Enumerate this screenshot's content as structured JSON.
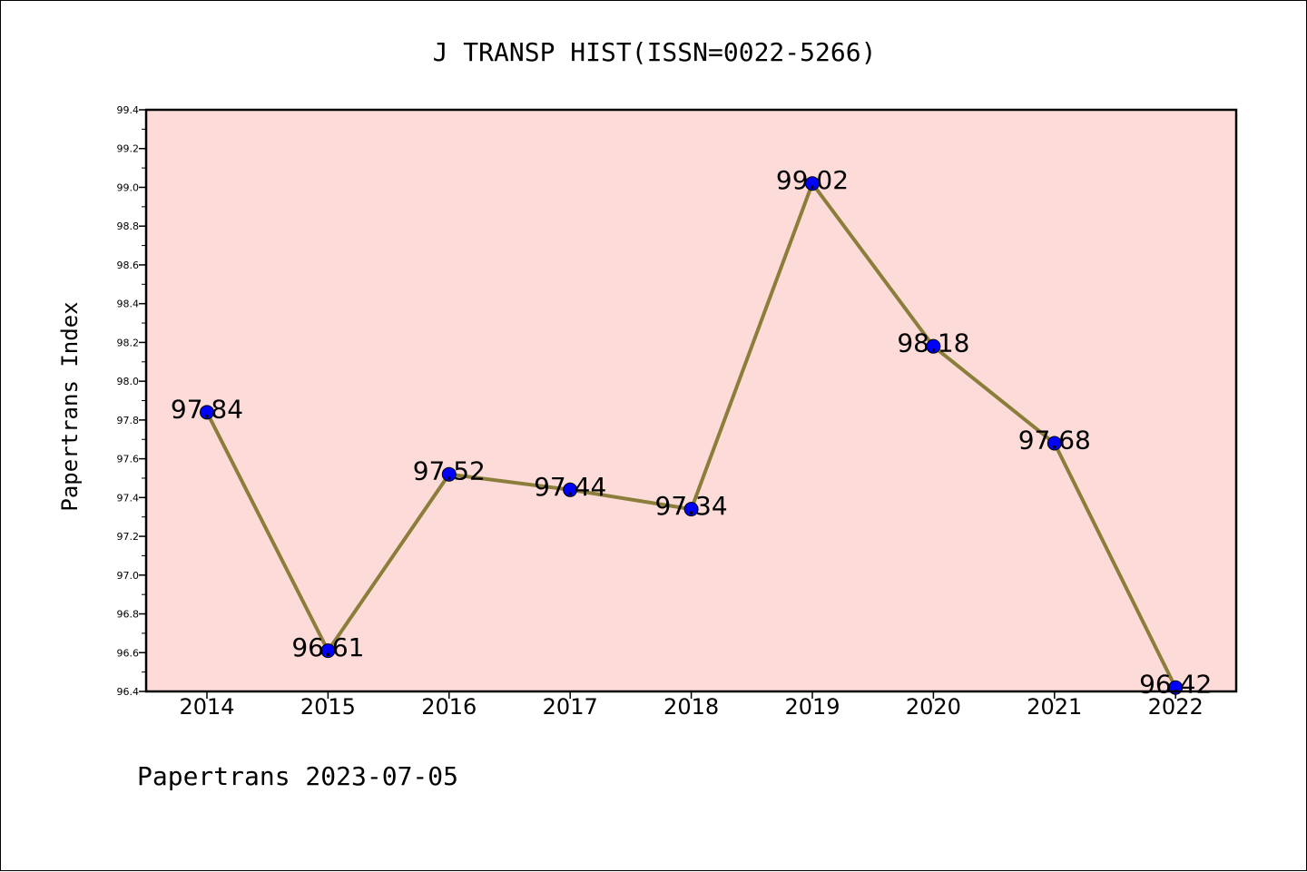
{
  "footer_text": "Papertrans 2023-07-05",
  "chart_data": {
    "type": "line",
    "title": "J TRANSP HIST(ISSN=0022-5266)",
    "xlabel": "",
    "ylabel": "Papertrans Index",
    "categories": [
      "2014",
      "2015",
      "2016",
      "2017",
      "2018",
      "2019",
      "2020",
      "2021",
      "2022"
    ],
    "values": [
      97.84,
      96.61,
      97.52,
      97.44,
      97.34,
      99.02,
      98.18,
      97.68,
      96.42
    ],
    "data_labels": [
      "97.84",
      "96.61",
      "97.52",
      "97.44",
      "97.34",
      "99.02",
      "98.18",
      "97.68",
      "96.42"
    ],
    "ylim": [
      96.4,
      99.4
    ],
    "yticks": [
      "96.4",
      "96.6",
      "96.8",
      "97.0",
      "97.2",
      "97.4",
      "97.6",
      "97.8",
      "98.0",
      "98.2",
      "98.4",
      "98.6",
      "98.8",
      "99.0",
      "99.2",
      "99.4"
    ],
    "grid": false,
    "legend": "none",
    "colors": {
      "plot_background": "#fddbd9",
      "line": "#8b7d3a",
      "marker": "#0000ff",
      "axes": "#000000"
    }
  }
}
